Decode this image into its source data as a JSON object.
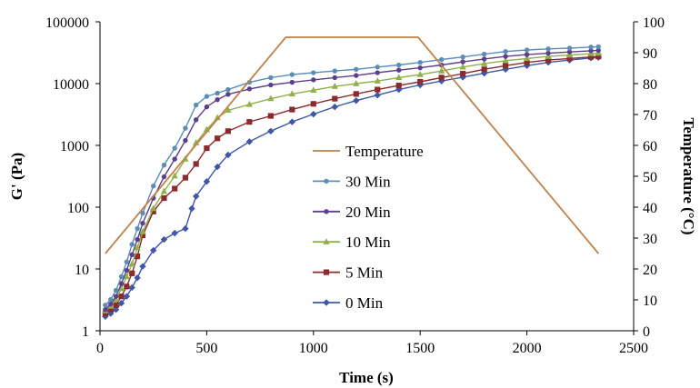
{
  "chart_data": {
    "type": "line",
    "xlabel": "Time (s)",
    "ylabel_left": "G' (Pa)",
    "ylabel_right": "Temperature (°C)",
    "x_ticks": [
      "0",
      "500",
      "1000",
      "1500",
      "2000",
      "2500"
    ],
    "y_left_ticks": [
      "1",
      "10",
      "100",
      "1000",
      "10000",
      "100000"
    ],
    "y_right_ticks": [
      "0",
      "10",
      "20",
      "30",
      "40",
      "50",
      "60",
      "70",
      "80",
      "90",
      "100"
    ],
    "xlim": [
      0,
      2500
    ],
    "ylim_left": [
      1,
      100000
    ],
    "y_left_scale": "log",
    "ylim_right": [
      0,
      100
    ],
    "grid": false,
    "legend_position": "center",
    "series": [
      {
        "name": "Temperature",
        "axis": "right",
        "color": "#c0814b",
        "marker": "none",
        "x": [
          25,
          870,
          1490,
          2335
        ],
        "y": [
          25,
          95,
          95,
          25
        ]
      },
      {
        "name": "30 Min",
        "axis": "left",
        "color": "#5b8db8",
        "marker": "circle",
        "x": [
          25,
          50,
          75,
          100,
          125,
          150,
          175,
          200,
          250,
          300,
          350,
          400,
          450,
          500,
          550,
          600,
          700,
          800,
          900,
          1000,
          1100,
          1200,
          1300,
          1400,
          1500,
          1600,
          1700,
          1800,
          1900,
          2000,
          2100,
          2200,
          2300,
          2335
        ],
        "y": [
          2.6,
          3.2,
          4.5,
          7.5,
          13,
          25,
          45,
          80,
          220,
          480,
          900,
          1900,
          4500,
          6200,
          7000,
          8000,
          10500,
          12500,
          14000,
          15000,
          16000,
          17000,
          18500,
          20000,
          22000,
          24500,
          27000,
          30000,
          33000,
          35000,
          36500,
          37500,
          39000,
          39500
        ]
      },
      {
        "name": "20 Min",
        "axis": "left",
        "color": "#5c3f8c",
        "marker": "circle",
        "x": [
          25,
          50,
          75,
          100,
          125,
          150,
          175,
          200,
          250,
          300,
          350,
          400,
          450,
          500,
          550,
          600,
          700,
          800,
          900,
          1000,
          1100,
          1200,
          1300,
          1400,
          1500,
          1600,
          1700,
          1800,
          1900,
          2000,
          2100,
          2200,
          2300,
          2335
        ],
        "y": [
          2.2,
          2.7,
          3.6,
          5.8,
          9.5,
          17,
          30,
          55,
          140,
          310,
          600,
          1200,
          2600,
          4200,
          5500,
          6700,
          8200,
          9500,
          10500,
          11500,
          12500,
          13500,
          15000,
          16500,
          18000,
          20000,
          22500,
          25000,
          27500,
          29500,
          31000,
          32500,
          34000,
          34500
        ]
      },
      {
        "name": "10 Min",
        "axis": "left",
        "color": "#8fb04a",
        "marker": "triangle",
        "x": [
          25,
          50,
          75,
          100,
          125,
          150,
          175,
          200,
          250,
          300,
          350,
          400,
          450,
          500,
          550,
          600,
          700,
          800,
          900,
          1000,
          1100,
          1200,
          1300,
          1400,
          1500,
          1600,
          1700,
          1800,
          1900,
          2000,
          2100,
          2200,
          2300,
          2335
        ],
        "y": [
          2.1,
          2.5,
          3.2,
          4.8,
          7.5,
          12,
          22,
          40,
          95,
          180,
          320,
          600,
          1100,
          1800,
          2800,
          3700,
          4600,
          5700,
          6800,
          7800,
          9000,
          10000,
          11000,
          12500,
          14000,
          16000,
          18500,
          21000,
          23500,
          25500,
          27500,
          29000,
          30500,
          31000
        ]
      },
      {
        "name": "5 Min",
        "axis": "left",
        "color": "#8b2b2e",
        "marker": "square",
        "x": [
          25,
          50,
          75,
          100,
          125,
          150,
          175,
          200,
          250,
          300,
          350,
          400,
          450,
          500,
          550,
          600,
          700,
          800,
          900,
          1000,
          1100,
          1200,
          1300,
          1400,
          1500,
          1600,
          1700,
          1800,
          1900,
          2000,
          2100,
          2200,
          2300,
          2335
        ],
        "y": [
          1.9,
          2.2,
          2.6,
          3.6,
          5.2,
          8.5,
          16,
          35,
          85,
          140,
          200,
          300,
          500,
          900,
          1300,
          1700,
          2400,
          3000,
          3800,
          4700,
          5700,
          6800,
          8000,
          9300,
          10700,
          12500,
          14500,
          17000,
          19500,
          22000,
          24000,
          25500,
          27000,
          27500
        ]
      },
      {
        "name": "0 Min",
        "axis": "left",
        "color": "#3f57a6",
        "marker": "diamond",
        "x": [
          25,
          50,
          75,
          100,
          125,
          150,
          175,
          200,
          250,
          300,
          350,
          400,
          430,
          450,
          500,
          550,
          600,
          700,
          800,
          900,
          1000,
          1100,
          1200,
          1300,
          1400,
          1500,
          1600,
          1700,
          1800,
          1900,
          2000,
          2100,
          2200,
          2300,
          2335
        ],
        "y": [
          1.7,
          1.9,
          2.2,
          2.8,
          3.6,
          5.0,
          7.2,
          11,
          20,
          30,
          38,
          45,
          95,
          150,
          260,
          450,
          700,
          1150,
          1700,
          2400,
          3200,
          4200,
          5300,
          6500,
          8000,
          9500,
          11000,
          12700,
          14700,
          17000,
          19500,
          22000,
          24000,
          26000,
          26500
        ]
      }
    ]
  }
}
